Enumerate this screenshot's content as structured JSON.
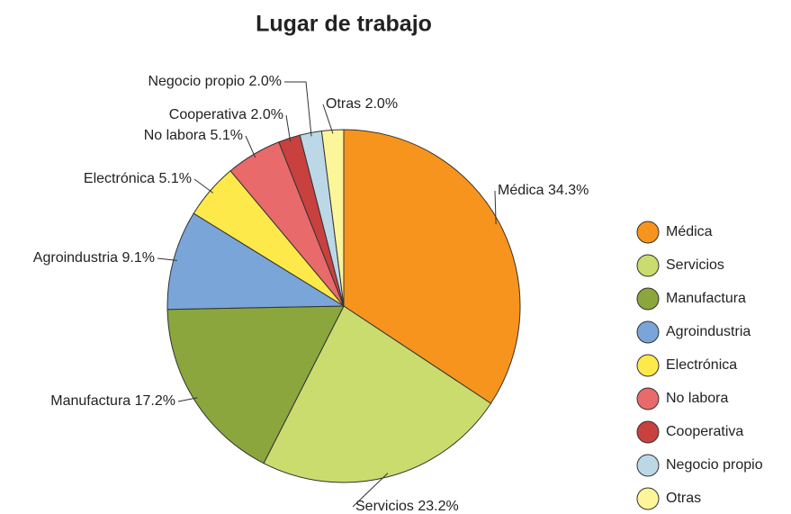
{
  "chart_data": {
    "type": "pie",
    "title": "Lugar de trabajo",
    "categories": [
      "Médica",
      "Servicios",
      "Manufactura",
      "Agroindustria",
      "Electrónica",
      "No labora",
      "Cooperativa",
      "Negocio propio",
      "Otras"
    ],
    "values": [
      34.3,
      23.2,
      17.2,
      9.1,
      5.1,
      5.1,
      2.0,
      2.0,
      2.0
    ],
    "value_labels": [
      "34.3%",
      "23.2%",
      "17.2%",
      "9.1%",
      "5.1%",
      "5.1%",
      "2.0%",
      "2.0%",
      "2.0%"
    ],
    "colors": [
      "#f7941d",
      "#cadc6e",
      "#8aa63c",
      "#7aa5d8",
      "#fee94a",
      "#e86a6a",
      "#c8413e",
      "#bcd8e6",
      "#fdf59a"
    ],
    "legend": "right"
  }
}
